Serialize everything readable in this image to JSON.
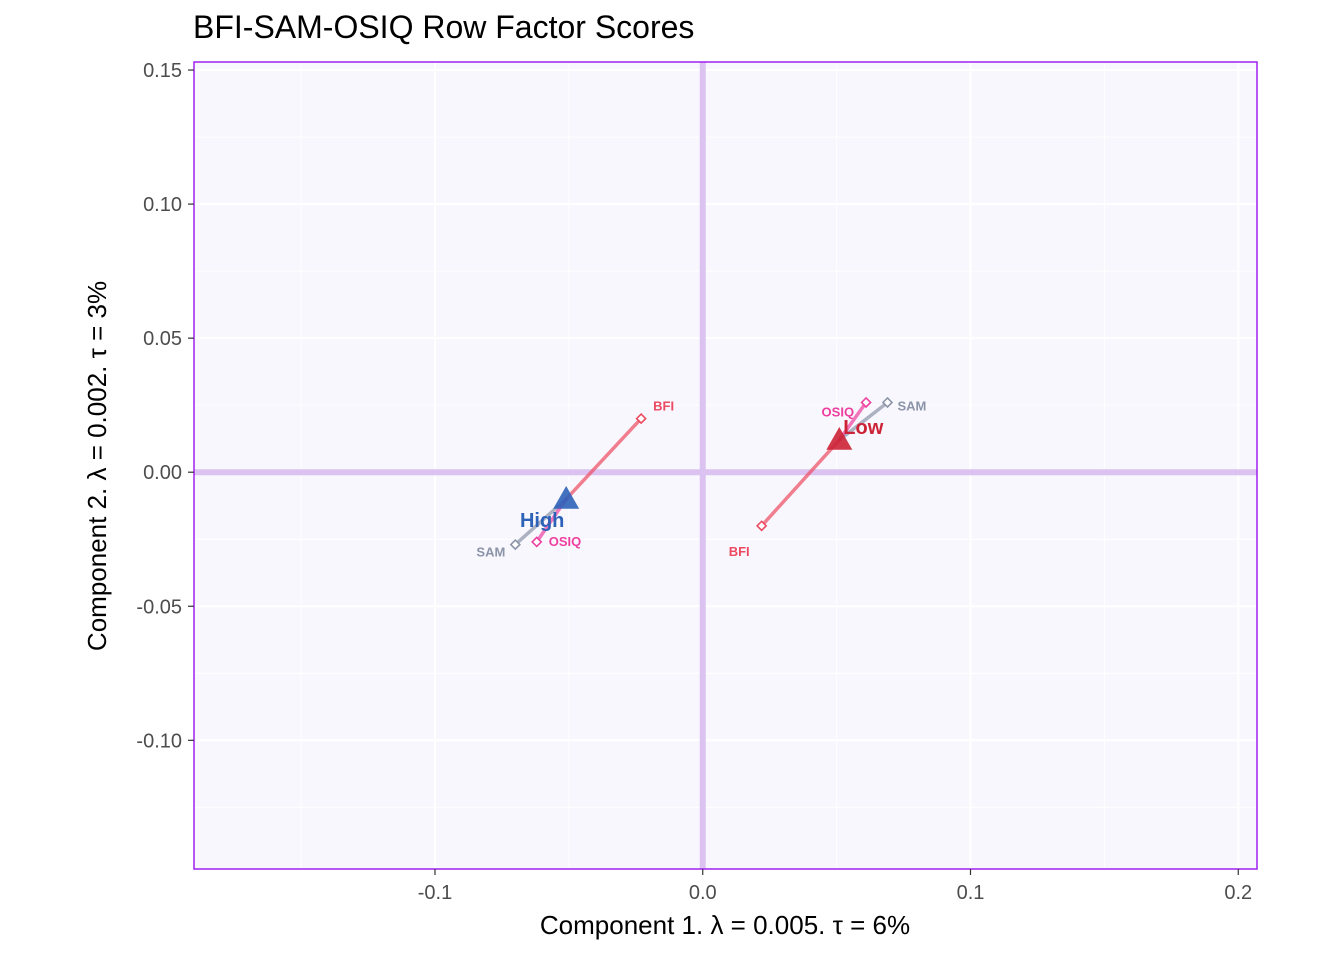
{
  "chart_data": {
    "type": "scatter",
    "title": "BFI-SAM-OSIQ Row Factor Scores",
    "xlabel": "Component 1.   λ = 0.005.  τ = 6%",
    "ylabel": "Component 2.   λ = 0.002.  τ = 3%",
    "xlim": [
      -0.19,
      0.207
    ],
    "ylim": [
      -0.148,
      0.153
    ],
    "x_ticks": [
      -0.1,
      0.0,
      0.1,
      0.2
    ],
    "x_tick_labels": [
      "-0.1",
      "0.0",
      "0.1",
      "0.2"
    ],
    "y_ticks": [
      -0.1,
      -0.05,
      0.0,
      0.05,
      0.1,
      0.15
    ],
    "y_tick_labels": [
      "-0.10",
      "-0.05",
      "0.00",
      "0.05",
      "0.10",
      "0.15"
    ],
    "grid": true,
    "colors": {
      "panel_bg": "#f8f7fe",
      "panel_border": "#a020f0",
      "origin_lines": "#dcc2f1",
      "grid": "#ffffff"
    },
    "groups": [
      {
        "label": "High",
        "x": -0.051,
        "y": -0.01,
        "color": "#2e62b8",
        "blocks": [
          {
            "label": "BFI",
            "x": -0.023,
            "y": 0.02,
            "color": "#ec4a60"
          },
          {
            "label": "SAM",
            "x": -0.07,
            "y": -0.027,
            "color": "#8b94a8"
          },
          {
            "label": "OSIQ",
            "x": -0.062,
            "y": -0.026,
            "color": "#ee3e9e"
          }
        ]
      },
      {
        "label": "Low",
        "x": 0.051,
        "y": 0.012,
        "color": "#cc2336",
        "blocks": [
          {
            "label": "BFI",
            "x": 0.022,
            "y": -0.02,
            "color": "#ec4a60"
          },
          {
            "label": "SAM",
            "x": 0.069,
            "y": 0.026,
            "color": "#8b94a8"
          },
          {
            "label": "OSIQ",
            "x": 0.061,
            "y": 0.026,
            "color": "#ee3e9e"
          }
        ]
      }
    ]
  }
}
